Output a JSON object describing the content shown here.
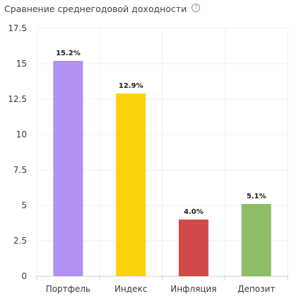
{
  "header": {
    "title": "Сравнение среднегодовой доходности",
    "help_icon": "question-circle-icon"
  },
  "chart_data": {
    "type": "bar",
    "title": "Сравнение среднегодовой доходности",
    "categories": [
      "Портфель",
      "Индекс",
      "Инфляция",
      "Депозит"
    ],
    "values": [
      15.2,
      12.9,
      4.0,
      5.1
    ],
    "value_labels": [
      "15.2%",
      "12.9%",
      "4.0%",
      "5.1%"
    ],
    "colors": [
      "#b191f2",
      "#f9d20a",
      "#d24a48",
      "#8dbd64"
    ],
    "ylim": [
      0,
      17.5
    ],
    "yticks": [
      "0",
      "2.5",
      "5",
      "7.5",
      "10",
      "12.5",
      "15",
      "17.5"
    ],
    "grid": true,
    "xlabel": "",
    "ylabel": ""
  }
}
